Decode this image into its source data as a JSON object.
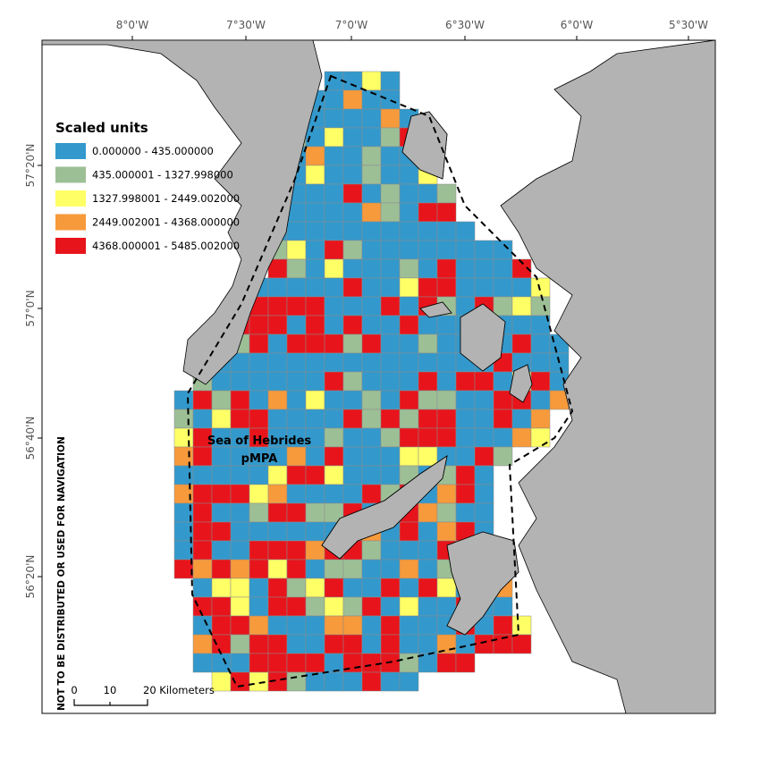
{
  "map": {
    "longitude_labels": [
      "8°0'W",
      "7°30'W",
      "7°0'W",
      "6°30'W",
      "6°0'W",
      "5°30'W"
    ],
    "latitude_labels": [
      "57°20'N",
      "57°0'N",
      "56°40'N",
      "56°20'N"
    ],
    "legend": {
      "title": "Scaled units",
      "items": [
        {
          "label": "0.000000 - 435.000000",
          "color": "#3399cc"
        },
        {
          "label": "435.000001 - 1327.998000",
          "color": "#9dbf96"
        },
        {
          "label": "1327.998001 - 2449.002000",
          "color": "#ffff66"
        },
        {
          "label": "2449.002001 - 4368.000000",
          "color": "#f79a3b"
        },
        {
          "label": "4368.000001 - 5485.002000",
          "color": "#e8141b"
        }
      ]
    },
    "area_label": [
      "Sea of Hebrides",
      "pMPA"
    ],
    "scale_bar": [
      "0",
      "10",
      "20 Kilometers"
    ],
    "disclaimer": "NOT TO BE DISTRIBUTED OR USED FOR NAVIGATION"
  }
}
